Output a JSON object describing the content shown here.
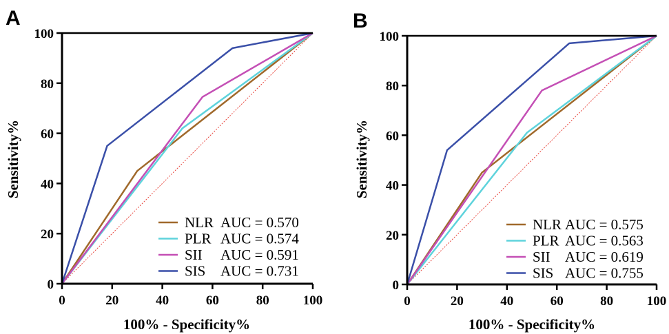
{
  "chart_data": [
    {
      "panel": "A",
      "type": "line",
      "xlabel": "100% - Specificity%",
      "ylabel": "Sensitivity%",
      "xlim": [
        0,
        100
      ],
      "ylim": [
        0,
        100
      ],
      "xticks": [
        "0",
        "20",
        "40",
        "60",
        "80",
        "100"
      ],
      "yticks": [
        "0",
        "20",
        "40",
        "60",
        "80",
        "100"
      ],
      "legend_position": "bottom-right",
      "reference_line": {
        "x": [
          0,
          100
        ],
        "y": [
          0,
          100
        ],
        "color": "#e8453c"
      },
      "series": [
        {
          "name": "NLR",
          "auc_text": "AUC = 0.570",
          "color": "#a0692b",
          "x": [
            0,
            30,
            100
          ],
          "y": [
            0,
            45,
            100
          ]
        },
        {
          "name": "PLR",
          "auc_text": "AUC = 0.574",
          "color": "#5ed3dc",
          "x": [
            0,
            48,
            100
          ],
          "y": [
            0,
            62,
            100
          ]
        },
        {
          "name": "SII",
          "auc_text": "AUC = 0.591",
          "color": "#c44fb5",
          "x": [
            0,
            56,
            100
          ],
          "y": [
            0,
            74.5,
            100
          ]
        },
        {
          "name": "SIS",
          "auc_text": "AUC = 0.731",
          "color": "#3a4fa8",
          "x": [
            0,
            18,
            68,
            100
          ],
          "y": [
            0,
            55,
            94,
            100
          ]
        }
      ]
    },
    {
      "panel": "B",
      "type": "line",
      "xlabel": "100% - Specificity%",
      "ylabel": "Sensitivity%",
      "xlim": [
        0,
        100
      ],
      "ylim": [
        0,
        100
      ],
      "xticks": [
        "0",
        "20",
        "40",
        "60",
        "80",
        "100"
      ],
      "yticks": [
        "0",
        "20",
        "40",
        "60",
        "80",
        "100"
      ],
      "legend_position": "bottom-right",
      "reference_line": {
        "x": [
          0,
          100
        ],
        "y": [
          0,
          100
        ],
        "color": "#e8453c"
      },
      "series": [
        {
          "name": "NLR",
          "auc_text": "AUC = 0.575",
          "color": "#a0692b",
          "x": [
            0,
            30,
            100
          ],
          "y": [
            0,
            45,
            100
          ]
        },
        {
          "name": "PLR",
          "auc_text": "AUC = 0.563",
          "color": "#5ed3dc",
          "x": [
            0,
            48,
            100
          ],
          "y": [
            0,
            61,
            100
          ]
        },
        {
          "name": "SII",
          "auc_text": "AUC = 0.619",
          "color": "#c44fb5",
          "x": [
            0,
            54,
            100
          ],
          "y": [
            0,
            78,
            100
          ]
        },
        {
          "name": "SIS",
          "auc_text": "AUC = 0.755",
          "color": "#3a4fa8",
          "x": [
            0,
            16,
            65,
            100
          ],
          "y": [
            0,
            54,
            97,
            100
          ]
        }
      ]
    }
  ]
}
